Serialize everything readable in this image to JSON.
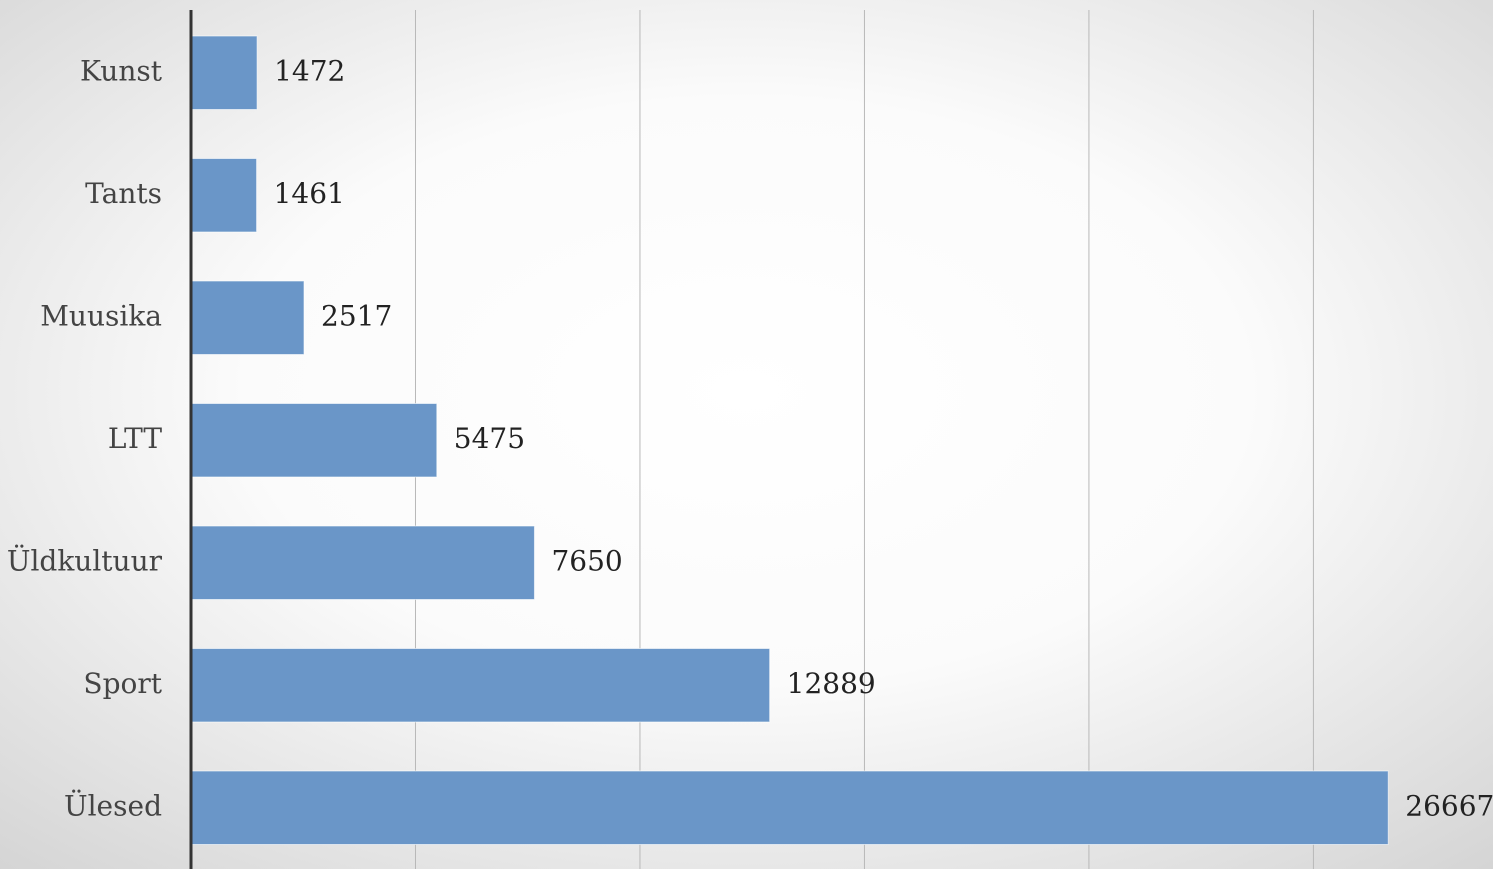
{
  "chart_data": {
    "type": "barh",
    "categories": [
      "Kunst",
      "Tants",
      "Muusika",
      "LTT",
      "Üldkultuur",
      "Sport",
      "Ülesed"
    ],
    "values": [
      1472,
      1461,
      2517,
      5475,
      7650,
      12889,
      26667
    ],
    "color": "#6a96c8",
    "xlim": [
      0,
      29000
    ],
    "xticks": [
      0,
      5000,
      10000,
      15000,
      20000,
      25000
    ],
    "grid": true
  }
}
